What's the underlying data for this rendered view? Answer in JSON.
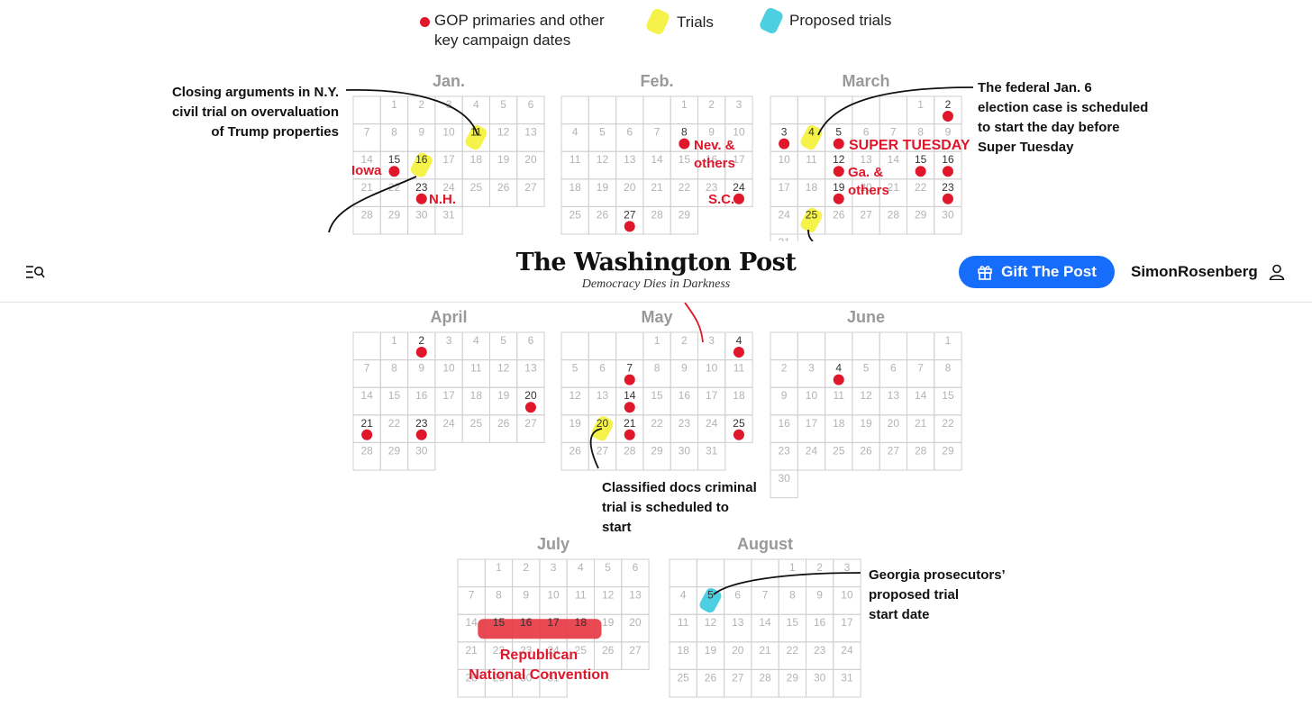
{
  "legend": {
    "gop": "GOP primaries and other\nkey campaign dates",
    "trials": "Trials",
    "proposed": "Proposed trials"
  },
  "colors": {
    "gop": "#e0162b",
    "trial": "#f5f24a",
    "proposed": "#4ccfe0",
    "grid": "#cfcfcf",
    "muted": "#aaaaaa"
  },
  "header": {
    "title": "The Washington Post",
    "tagline": "Democracy Dies in Darkness",
    "gift_label": "Gift The Post",
    "username": "SimonRosenberg",
    "menu_icon": "menu-search-icon",
    "gift_icon": "gift-icon",
    "user_icon": "user-icon"
  },
  "calendar": {
    "months": [
      {
        "name": "Jan.",
        "firstDay": 1,
        "days": 31,
        "gop": [
          15,
          23
        ],
        "trials": [
          11,
          16
        ],
        "proposed": [],
        "dark": [
          11,
          15,
          16,
          23
        ]
      },
      {
        "name": "Feb.",
        "firstDay": 4,
        "days": 29,
        "gop": [
          8,
          24,
          27
        ],
        "trials": [],
        "proposed": [],
        "dark": [
          8,
          24,
          27
        ]
      },
      {
        "name": "March",
        "firstDay": 5,
        "days": 31,
        "gop": [
          2,
          3,
          5,
          12,
          15,
          16,
          19,
          23
        ],
        "trials": [
          4,
          25
        ],
        "proposed": [],
        "dark": [
          2,
          3,
          4,
          5,
          12,
          15,
          16,
          19,
          23,
          25
        ]
      },
      {
        "name": "April",
        "firstDay": 1,
        "days": 30,
        "gop": [
          2,
          20,
          21,
          23
        ],
        "trials": [],
        "proposed": [],
        "dark": [
          2,
          20,
          21,
          23
        ]
      },
      {
        "name": "May",
        "firstDay": 3,
        "days": 31,
        "gop": [
          4,
          7,
          14,
          21,
          25
        ],
        "trials": [
          20
        ],
        "proposed": [],
        "dark": [
          4,
          7,
          14,
          20,
          21,
          25
        ]
      },
      {
        "name": "June",
        "firstDay": 6,
        "days": 30,
        "gop": [
          4
        ],
        "trials": [],
        "proposed": [],
        "dark": [
          4
        ]
      },
      {
        "name": "July",
        "firstDay": 1,
        "days": 31,
        "gop": [],
        "trials": [],
        "proposed": [],
        "convention": [
          15,
          16,
          17,
          18
        ],
        "dark": [
          15,
          16,
          17,
          18
        ]
      },
      {
        "name": "August",
        "firstDay": 4,
        "days": 31,
        "gop": [],
        "trials": [],
        "proposed": [
          5
        ],
        "dark": [
          5
        ]
      }
    ]
  },
  "annotations": {
    "ny_civil": "Closing arguments in N.Y.\ncivil trial on overvaluation\nof Trump properties",
    "federal": "The federal Jan. 6\nelection case is scheduled\nto start the day before\nSuper Tuesday",
    "classified": "Classified docs criminal\ntrial is scheduled to\nstart",
    "georgia": "Georgia prosecutors’\nproposed trial\nstart date",
    "iowa": "Iowa",
    "nh": "N.H.",
    "nev": "Nev. &\nothers",
    "sc": "S.C.",
    "super_tuesday": "SUPER TUESDAY",
    "ga": "Ga. &\nothers",
    "convention": "Republican\nNational Convention"
  }
}
